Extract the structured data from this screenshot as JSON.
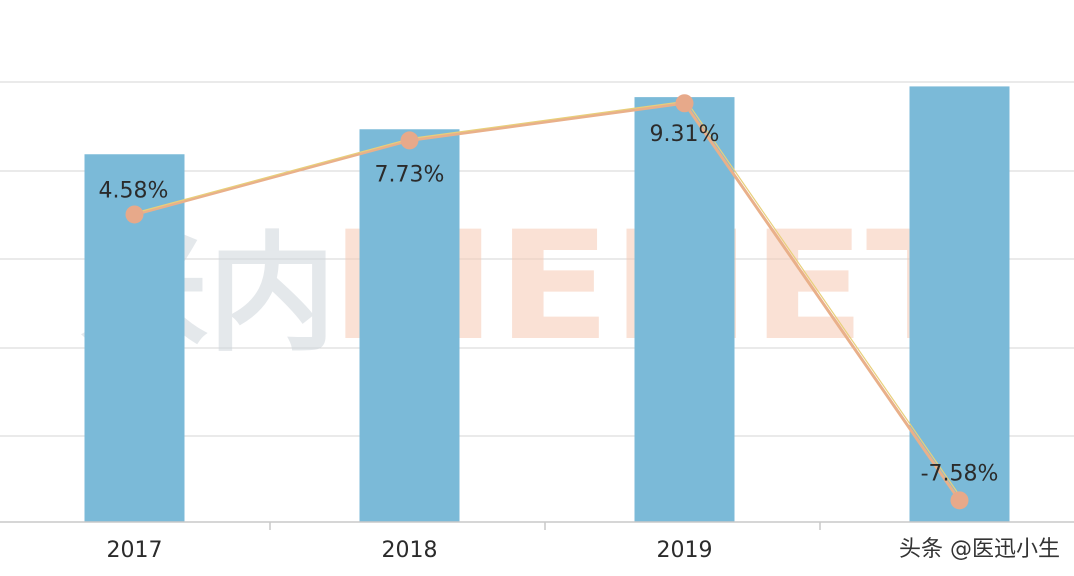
{
  "chart_data": {
    "type": "bar",
    "categories": [
      "2017",
      "2018",
      "2019",
      ""
    ],
    "series": [
      {
        "type": "bar",
        "values": [
          103,
          110,
          119,
          122
        ]
      },
      {
        "type": "line",
        "values": [
          4.58,
          7.73,
          9.31,
          -7.58
        ],
        "labels": [
          "4.58%",
          "7.73%",
          "9.31%",
          "-7.58%"
        ]
      }
    ],
    "bar_ylim": [
      0,
      135
    ],
    "line_ylim": [
      -8.5,
      12
    ],
    "grid": true,
    "legend": "none",
    "colors": {
      "bar": "#7bbad8",
      "line": "#e9b08a",
      "line_highlight": "#e8cf7a",
      "marker": "#e7a98a",
      "grid": "#d6d6d6",
      "axis": "#c8c8c8",
      "text": "#2b2b2b"
    }
  },
  "watermark": {
    "logo_text": "米内",
    "brand_text": "MENET",
    "colors": {
      "logo": "#cfd6dc",
      "brand": "#f6c9b3"
    }
  },
  "credit": {
    "text": "头条 @医迅小生",
    "color": "#333333"
  }
}
